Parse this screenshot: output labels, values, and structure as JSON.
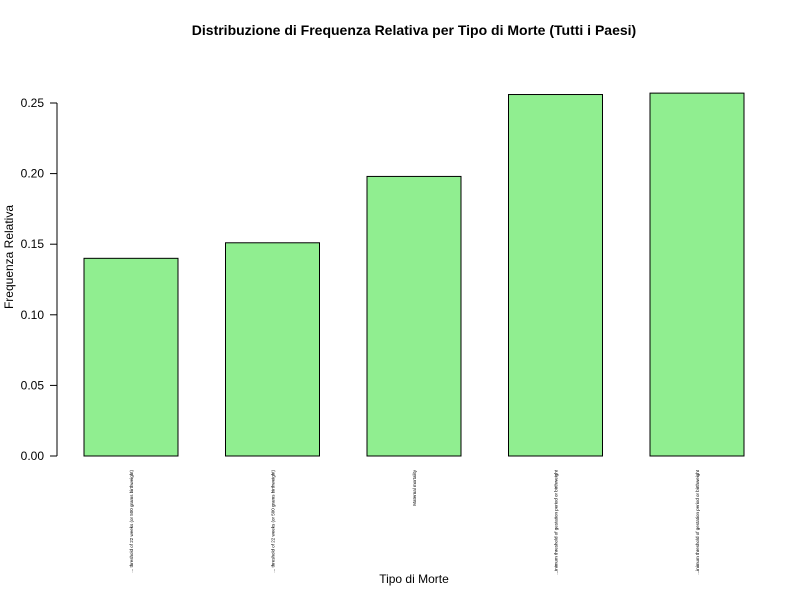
{
  "chart_data": {
    "type": "bar",
    "title": "Distribuzione di Frequenza Relativa per Tipo di Morte (Tutti i Paesi)",
    "xlabel": "Tipo di Morte",
    "ylabel": "Frequenza Relativa",
    "ylim": [
      0,
      0.26
    ],
    "yticks": [
      "0.00",
      "0.05",
      "0.10",
      "0.15",
      "0.20",
      "0.25"
    ],
    "categories": [
      "... threshold of 22 weeks (or 500 grams birthweight)",
      "... threshold of 22 weeks (or 500 grams birthweight)",
      "Maternal mortality",
      "...inimum threshold of gestation period or birthweight",
      "...inimum threshold of gestation period or birthweight"
    ],
    "values": [
      0.14,
      0.151,
      0.198,
      0.256,
      0.257
    ],
    "bar_color": "#90ee90",
    "bar_border": "#000000",
    "grid": false,
    "legend": "none"
  }
}
